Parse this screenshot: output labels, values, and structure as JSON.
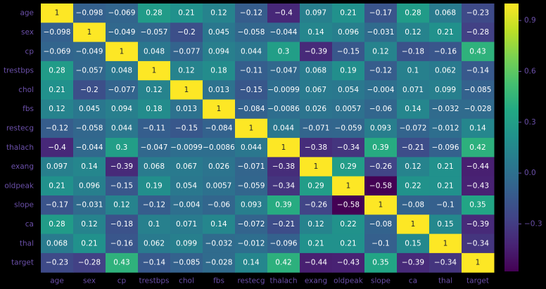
{
  "chart_data": {
    "type": "heatmap",
    "title": "",
    "xlabel": "",
    "ylabel": "",
    "labels": [
      "age",
      "sex",
      "cp",
      "trestbps",
      "chol",
      "fbs",
      "restecg",
      "thalach",
      "exang",
      "oldpeak",
      "slope",
      "ca",
      "thal",
      "target"
    ],
    "values": [
      [
        1,
        -0.098,
        -0.069,
        0.28,
        0.21,
        0.12,
        -0.12,
        -0.4,
        0.097,
        0.21,
        -0.17,
        0.28,
        0.068,
        -0.23
      ],
      [
        -0.098,
        1,
        -0.049,
        -0.057,
        -0.2,
        0.045,
        -0.058,
        -0.044,
        0.14,
        0.096,
        -0.031,
        0.12,
        0.21,
        -0.28
      ],
      [
        -0.069,
        -0.049,
        1,
        0.048,
        -0.077,
        0.094,
        0.044,
        0.3,
        -0.39,
        -0.15,
        0.12,
        -0.18,
        -0.16,
        0.43
      ],
      [
        0.28,
        -0.057,
        0.048,
        1,
        0.12,
        0.18,
        -0.11,
        -0.047,
        0.068,
        0.19,
        -0.12,
        0.1,
        0.062,
        -0.14
      ],
      [
        0.21,
        -0.2,
        -0.077,
        0.12,
        1,
        0.013,
        -0.15,
        -0.0099,
        0.067,
        0.054,
        -0.004,
        0.071,
        0.099,
        -0.085
      ],
      [
        0.12,
        0.045,
        0.094,
        0.18,
        0.013,
        1,
        -0.084,
        -0.0086,
        0.026,
        0.0057,
        -0.06,
        0.14,
        -0.032,
        -0.028
      ],
      [
        -0.12,
        -0.058,
        0.044,
        -0.11,
        -0.15,
        -0.084,
        1,
        0.044,
        -0.071,
        -0.059,
        0.093,
        -0.072,
        -0.012,
        0.14
      ],
      [
        -0.4,
        -0.044,
        0.3,
        -0.047,
        -0.0099,
        -0.0086,
        0.044,
        1,
        -0.38,
        -0.34,
        0.39,
        -0.21,
        -0.096,
        0.42
      ],
      [
        0.097,
        0.14,
        -0.39,
        0.068,
        0.067,
        0.026,
        -0.071,
        -0.38,
        1,
        0.29,
        -0.26,
        0.12,
        0.21,
        -0.44
      ],
      [
        0.21,
        0.096,
        -0.15,
        0.19,
        0.054,
        0.0057,
        -0.059,
        -0.34,
        0.29,
        1,
        -0.58,
        0.22,
        0.21,
        -0.43
      ],
      [
        -0.17,
        -0.031,
        0.12,
        -0.12,
        -0.004,
        -0.06,
        0.093,
        0.39,
        -0.26,
        -0.58,
        1,
        -0.08,
        -0.1,
        0.35
      ],
      [
        0.28,
        0.12,
        -0.18,
        0.1,
        0.071,
        0.14,
        -0.072,
        -0.21,
        0.12,
        0.22,
        -0.08,
        1,
        0.15,
        -0.39
      ],
      [
        0.068,
        0.21,
        -0.16,
        0.062,
        0.099,
        -0.032,
        -0.012,
        -0.096,
        0.21,
        0.21,
        -0.1,
        0.15,
        1,
        -0.34
      ],
      [
        -0.23,
        -0.28,
        0.43,
        -0.14,
        -0.085,
        -0.028,
        0.14,
        0.42,
        -0.44,
        -0.43,
        0.35,
        -0.39,
        -0.34,
        1
      ]
    ],
    "colormap": "viridis",
    "vmin": -0.58,
    "vmax": 1,
    "colorbar_ticks": [
      0.9,
      0.6,
      0.3,
      0.0,
      -0.3
    ],
    "colorbar_tick_labels": [
      "0.9",
      "0.6",
      "0.3",
      "0.0",
      "−0.3"
    ],
    "annotations": "cell values shown",
    "legend": "colorbar at right"
  },
  "colors": {
    "background": "#000000",
    "label": "#6a4fa8",
    "text_dark_cell": "#ffffff",
    "text_light_cell": "#262626"
  }
}
